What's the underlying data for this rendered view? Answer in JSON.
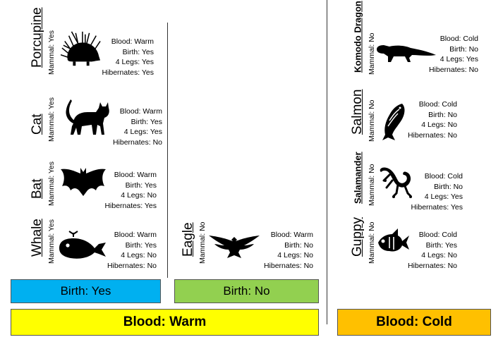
{
  "animals": {
    "porcupine": {
      "name": "Porcupine",
      "mammal": "Mammal: Yes",
      "blood": "Blood: Warm",
      "birth": "Birth: Yes",
      "legs": "4 Legs: Yes",
      "hibernates": "Hibernates: Yes",
      "icon": "porcupine-icon"
    },
    "cat": {
      "name": "Cat",
      "mammal": "Mammal: Yes",
      "blood": "Blood: Warm",
      "birth": "Birth: Yes",
      "legs": "4 Legs: Yes",
      "hibernates": "Hibernates: No",
      "icon": "cat-icon"
    },
    "bat": {
      "name": "Bat",
      "mammal": "Mammal: Yes",
      "blood": "Blood: Warm",
      "birth": "Birth: Yes",
      "legs": "4 Legs: No",
      "hibernates": "Hibernates: Yes",
      "icon": "bat-icon"
    },
    "whale": {
      "name": "Whale",
      "mammal": "Mammal: Yes",
      "blood": "Blood: Warm",
      "birth": "Birth: Yes",
      "legs": "4 Legs: No",
      "hibernates": "Hibernates: No",
      "icon": "whale-icon"
    },
    "eagle": {
      "name": "Eagle",
      "mammal": "Mammal: No",
      "blood": "Blood: Warm",
      "birth": "Birth: No",
      "legs": "4 Legs: No",
      "hibernates": "Hibernates: No",
      "icon": "eagle-icon"
    },
    "komodo": {
      "name": "Komodo Dragon",
      "mammal": "Mammal: No",
      "blood": "Blood: Cold",
      "birth": "Birth: No",
      "legs": "4 Legs: Yes",
      "hibernates": "Hibernates: No",
      "icon": "komodo-dragon-icon"
    },
    "salmon": {
      "name": "Salmon",
      "mammal": "Mammal: No",
      "blood": "Blood: Cold",
      "birth": "Birth: No",
      "legs": "4 Legs: No",
      "hibernates": "Hibernates: No",
      "icon": "salmon-icon"
    },
    "salamander": {
      "name": "Salamander",
      "mammal": "Mammal: No",
      "blood": "Blood: Cold",
      "birth": "Birth: No",
      "legs": "4 Legs: Yes",
      "hibernates": "Hibernates: Yes",
      "icon": "salamander-icon"
    },
    "guppy": {
      "name": "Guppy",
      "mammal": "Mammal: No",
      "blood": "Blood: Cold",
      "birth": "Birth: Yes",
      "legs": "4 Legs: No",
      "hibernates": "Hibernates: No",
      "icon": "fish-icon"
    }
  },
  "groups": {
    "birth_yes": {
      "label": "Birth: Yes",
      "color": "#00B0F0"
    },
    "birth_no": {
      "label": "Birth: No",
      "color": "#92D050"
    },
    "blood_warm": {
      "label": "Blood: Warm",
      "color": "#FFFF00"
    },
    "blood_cold": {
      "label": "Blood: Cold",
      "color": "#FFC000"
    }
  }
}
